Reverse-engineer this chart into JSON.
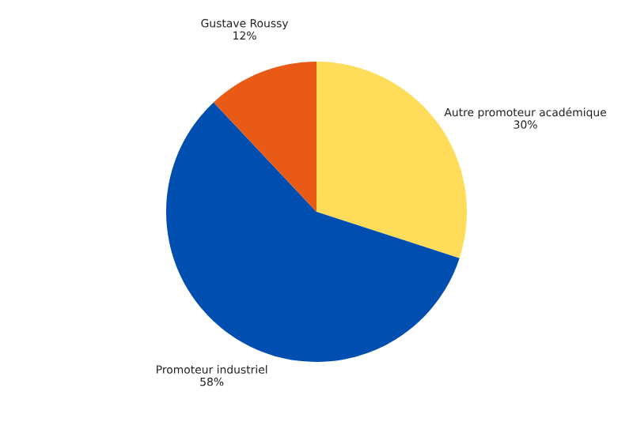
{
  "chart_data": {
    "type": "pie",
    "categories": [
      "Autre promoteur académique",
      "Promoteur industriel",
      "Gustave Roussy"
    ],
    "values": [
      30,
      58,
      12
    ],
    "value_labels": [
      "30%",
      "58%",
      "12%"
    ],
    "colors": [
      "#ffdc5a",
      "#004fb0",
      "#e85a16"
    ]
  }
}
